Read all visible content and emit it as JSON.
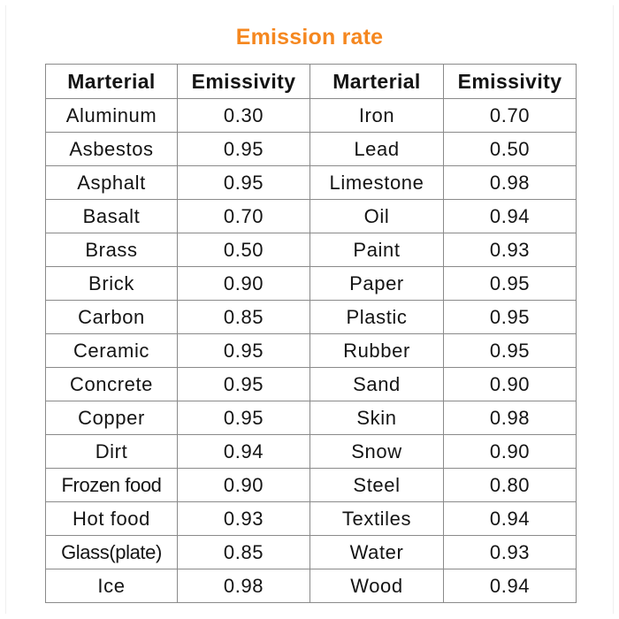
{
  "title": "Emission rate",
  "colors": {
    "title": "#f5871f",
    "border": "#8a8a8a",
    "text": "#141414"
  },
  "table": {
    "headers": [
      "Marterial",
      "Emissivity",
      "Marterial",
      "Emissivity"
    ],
    "rows": [
      [
        "Aluminum",
        "0.30",
        "Iron",
        "0.70"
      ],
      [
        "Asbestos",
        "0.95",
        "Lead",
        "0.50"
      ],
      [
        "Asphalt",
        "0.95",
        "Limestone",
        "0.98"
      ],
      [
        "Basalt",
        "0.70",
        "Oil",
        "0.94"
      ],
      [
        "Brass",
        "0.50",
        "Paint",
        "0.93"
      ],
      [
        "Brick",
        "0.90",
        "Paper",
        "0.95"
      ],
      [
        "Carbon",
        "0.85",
        "Plastic",
        "0.95"
      ],
      [
        "Ceramic",
        "0.95",
        "Rubber",
        "0.95"
      ],
      [
        "Concrete",
        "0.95",
        "Sand",
        "0.90"
      ],
      [
        "Copper",
        "0.95",
        "Skin",
        "0.98"
      ],
      [
        "Dirt",
        "0.94",
        "Snow",
        "0.90"
      ],
      [
        "Frozen food",
        "0.90",
        "Steel",
        "0.80"
      ],
      [
        "Hot food",
        "0.93",
        "Textiles",
        "0.94"
      ],
      [
        "Glass(plate)",
        "0.85",
        "Water",
        "0.93"
      ],
      [
        "Ice",
        "0.98",
        "Wood",
        "0.94"
      ]
    ]
  }
}
